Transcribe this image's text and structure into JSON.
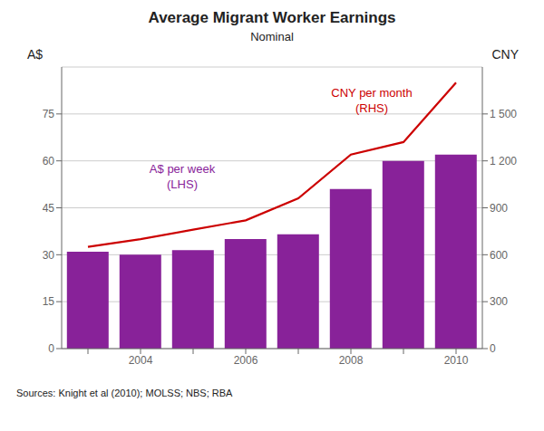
{
  "chart_data": {
    "type": "bar",
    "title": "Average Migrant Worker Earnings",
    "subtitle": "Nominal",
    "categories": [
      null,
      "2004",
      null,
      "2006",
      null,
      "2008",
      null,
      "2010"
    ],
    "series": [
      {
        "type": "bar",
        "color": "#882299",
        "values": [
          31,
          30,
          31.5,
          35,
          36.5,
          51,
          60,
          62
        ]
      },
      {
        "type": "line",
        "axis": "y2",
        "color": "#cc0000",
        "values": [
          650,
          700,
          760,
          820,
          960,
          1240,
          1320,
          1700
        ]
      }
    ],
    "ylabel": "A$",
    "y2label": "CNY",
    "ylim": [
      0,
      90
    ],
    "yticks": [
      0,
      15,
      30,
      45,
      60,
      75
    ],
    "y2lim": [
      0,
      1800
    ],
    "y2ticks": [
      0,
      300,
      600,
      900,
      {
        "value": 1200,
        "label": "1 200"
      },
      {
        "value": 1500,
        "label": "1 500"
      }
    ],
    "grid": true,
    "annotations": [
      {
        "text": [
          "A$ per week",
          "(LHS)"
        ],
        "color": "#882299"
      },
      {
        "text": [
          "CNY per month",
          "(RHS)"
        ],
        "color": "#cc0000"
      }
    ],
    "source": "Sources: Knight et al (2010); MOLSS; NBS; RBA"
  }
}
